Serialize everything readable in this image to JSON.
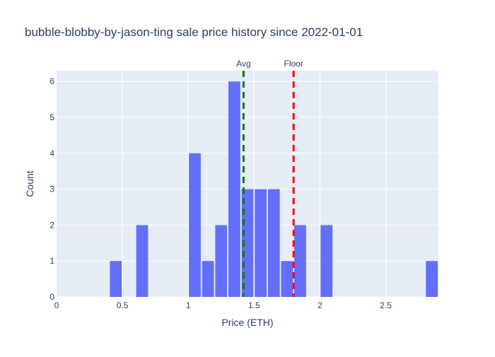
{
  "chart_data": {
    "type": "bar",
    "title": "bubble-blobby-by-jason-ting sale price history since 2022-01-01",
    "xlabel": "Price (ETH)",
    "ylabel": "Count",
    "xlim": [
      0,
      2.9
    ],
    "ylim": [
      0,
      6.3
    ],
    "x_ticks": [
      0,
      0.5,
      1,
      1.5,
      2,
      2.5
    ],
    "x_tick_labels": [
      "0",
      "0.5",
      "1",
      "1.5",
      "2",
      "2.5"
    ],
    "y_ticks": [
      0,
      1,
      2,
      3,
      4,
      5,
      6
    ],
    "y_tick_labels": [
      "0",
      "1",
      "2",
      "3",
      "4",
      "5",
      "6"
    ],
    "bin_width": 0.1,
    "bars": [
      {
        "x": 0.45,
        "count": 1
      },
      {
        "x": 0.65,
        "count": 2
      },
      {
        "x": 1.05,
        "count": 4
      },
      {
        "x": 1.15,
        "count": 1
      },
      {
        "x": 1.25,
        "count": 2
      },
      {
        "x": 1.35,
        "count": 6
      },
      {
        "x": 1.45,
        "count": 3
      },
      {
        "x": 1.55,
        "count": 3
      },
      {
        "x": 1.65,
        "count": 3
      },
      {
        "x": 1.75,
        "count": 1
      },
      {
        "x": 1.85,
        "count": 2
      },
      {
        "x": 2.05,
        "count": 2
      },
      {
        "x": 2.85,
        "count": 1
      }
    ],
    "reference_lines": [
      {
        "label": "Avg",
        "x": 1.42,
        "color": "#008000"
      },
      {
        "label": "Floor",
        "x": 1.8,
        "color": "#ff0000"
      }
    ],
    "bar_color": "#636efa",
    "plot_bg": "#e5ecf6",
    "grid": true
  }
}
